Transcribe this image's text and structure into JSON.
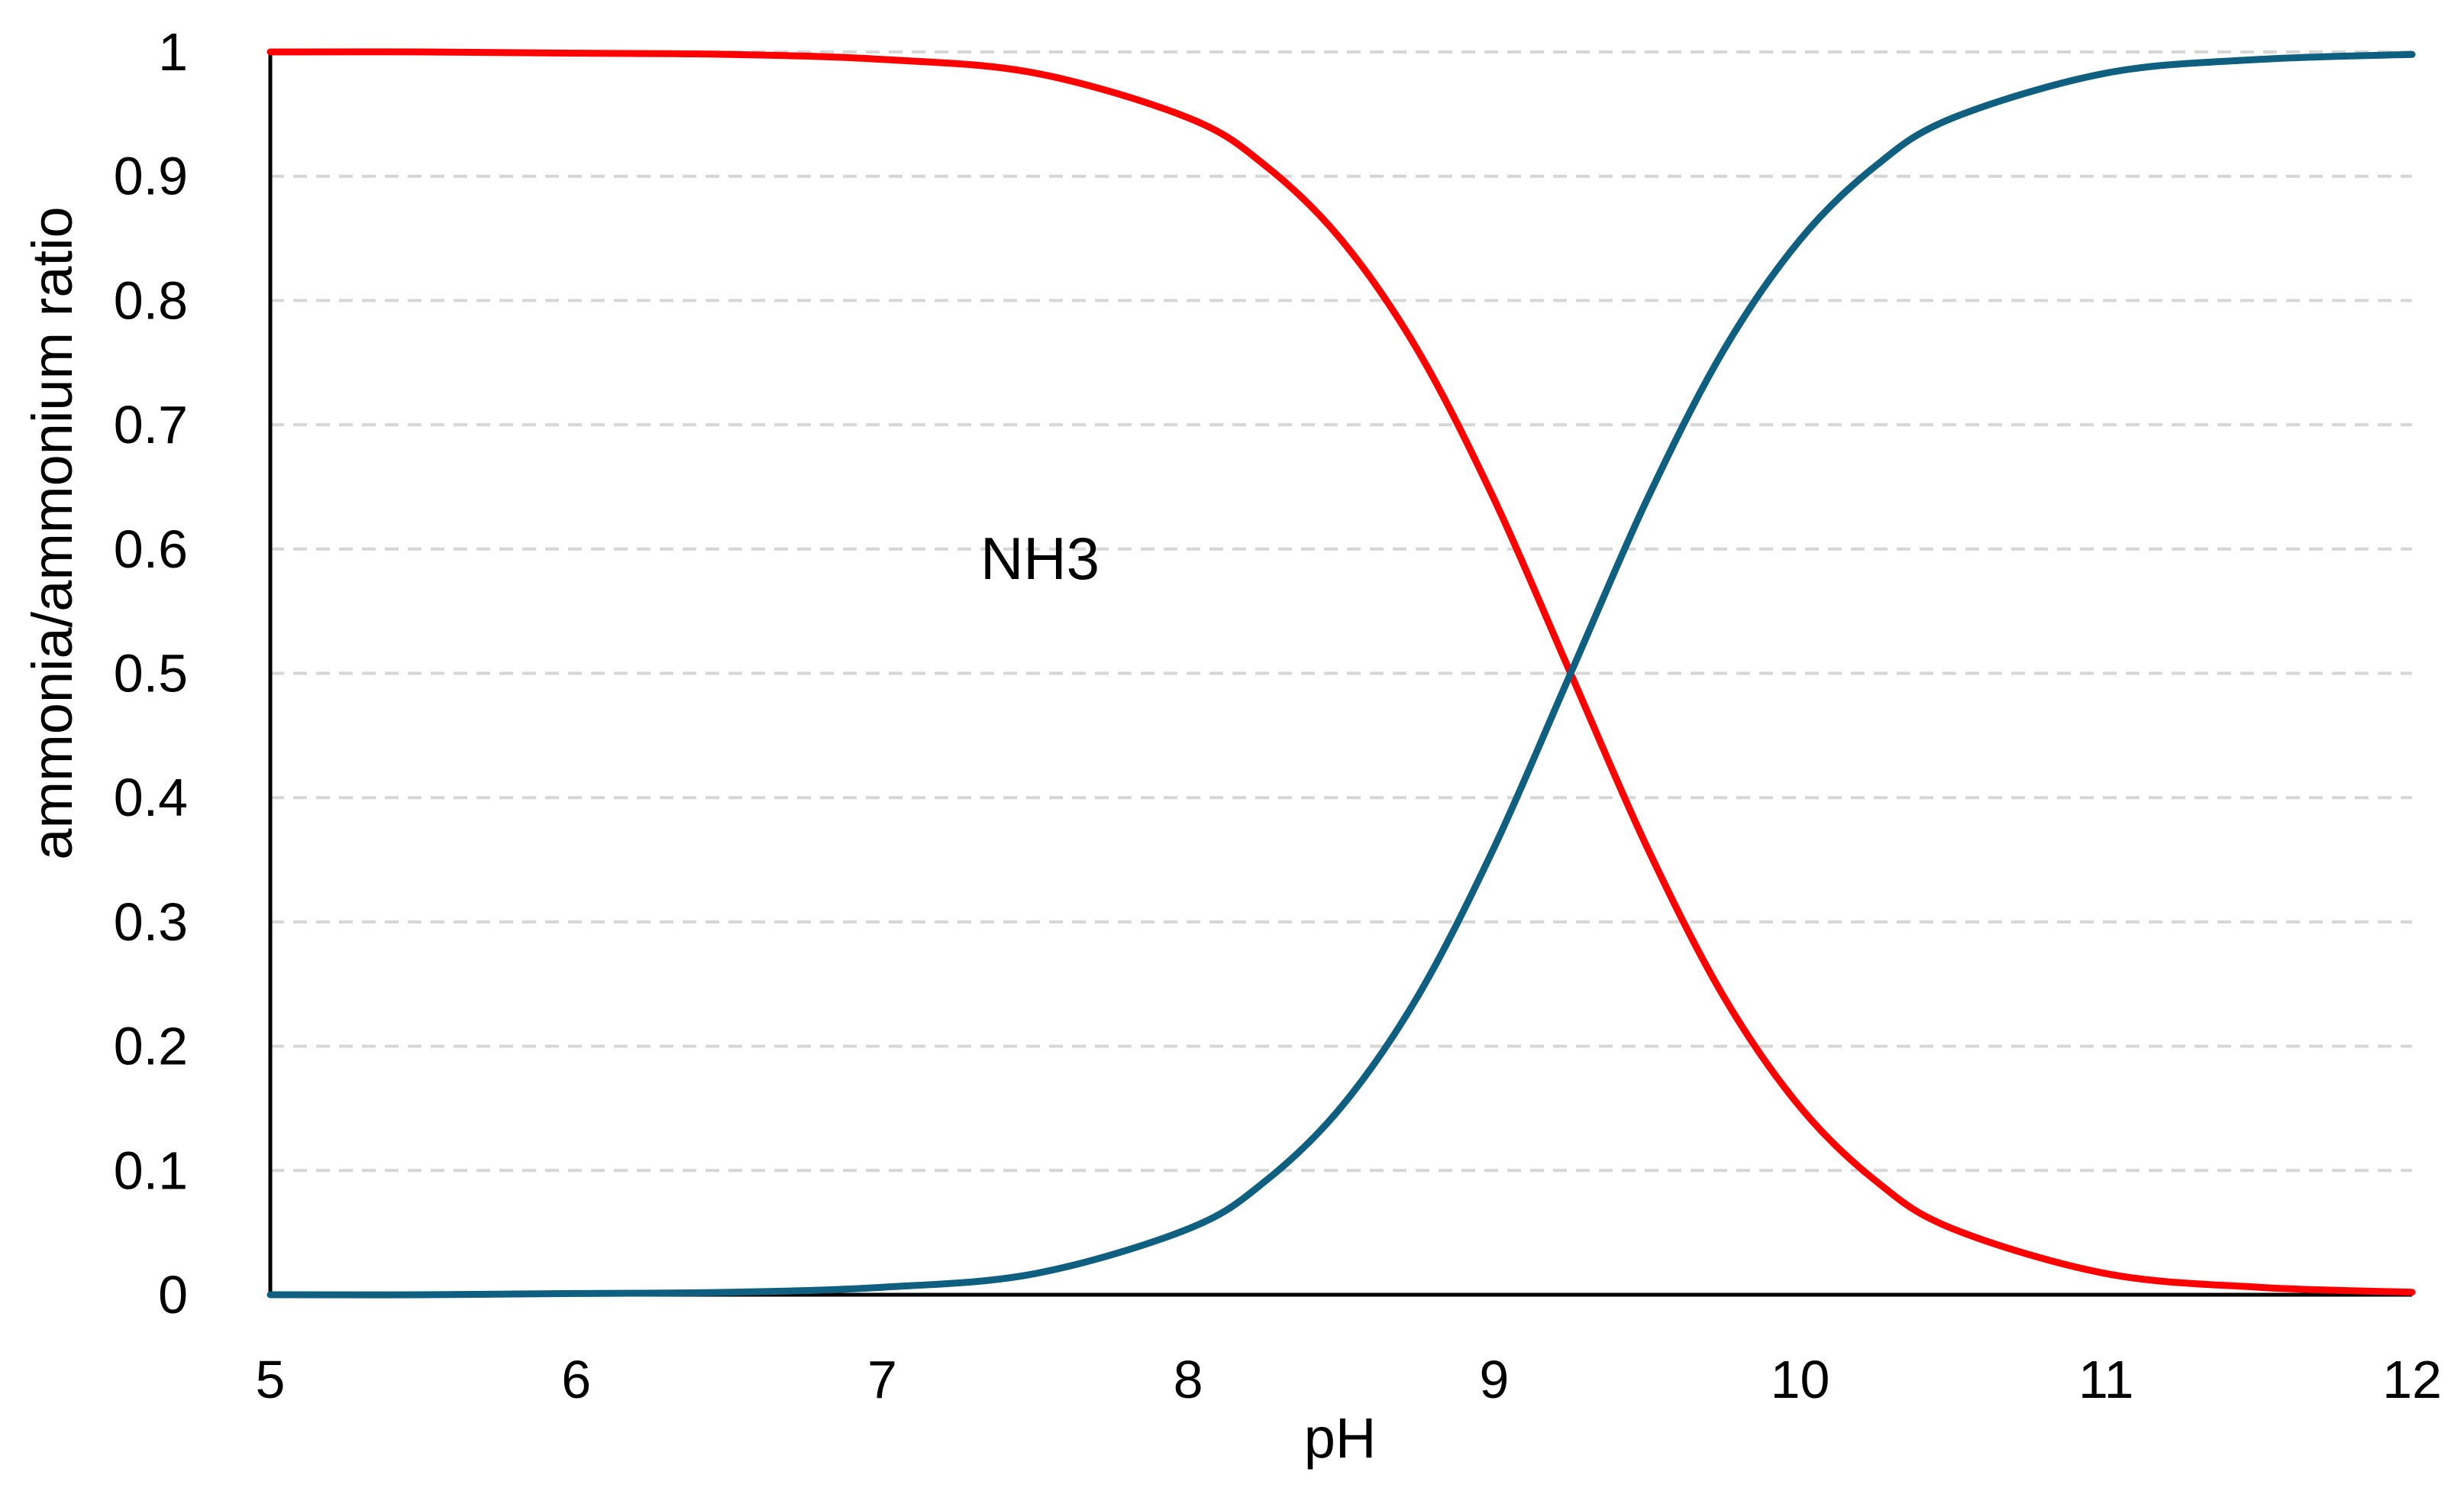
{
  "chart_data": {
    "type": "line",
    "title": "",
    "xlabel": "pH",
    "ylabel": "ammonia/ammonium ratio",
    "xlim": [
      5,
      12
    ],
    "ylim": [
      0,
      1
    ],
    "x_ticks": [
      "5",
      "6",
      "7",
      "8",
      "9",
      "10",
      "11",
      "12"
    ],
    "y_ticks": [
      "0",
      "0.1",
      "0.2",
      "0.3",
      "0.4",
      "0.5",
      "0.6",
      "0.7",
      "0.8",
      "0.9",
      "1"
    ],
    "grid": "horizontal dashed",
    "annotation": "NH3",
    "x": [
      5,
      5.5,
      6,
      6.5,
      7,
      7.5,
      8,
      8.25,
      8.5,
      8.75,
      9,
      9.25,
      9.5,
      9.75,
      10,
      10.25,
      10.5,
      11,
      11.5,
      12
    ],
    "series": [
      {
        "color": "#ff0000",
        "values": [
          1.0,
          1.0,
          0.999,
          0.998,
          0.994,
          0.983,
          0.947,
          0.909,
          0.849,
          0.76,
          0.64,
          0.5,
          0.36,
          0.24,
          0.151,
          0.091,
          0.053,
          0.017,
          0.006,
          0.002
        ]
      },
      {
        "color": "#0e5f80",
        "values": [
          0.0,
          0.0,
          0.001,
          0.002,
          0.006,
          0.017,
          0.053,
          0.091,
          0.151,
          0.24,
          0.36,
          0.5,
          0.64,
          0.76,
          0.849,
          0.909,
          0.947,
          0.983,
          0.994,
          0.998
        ]
      }
    ]
  }
}
